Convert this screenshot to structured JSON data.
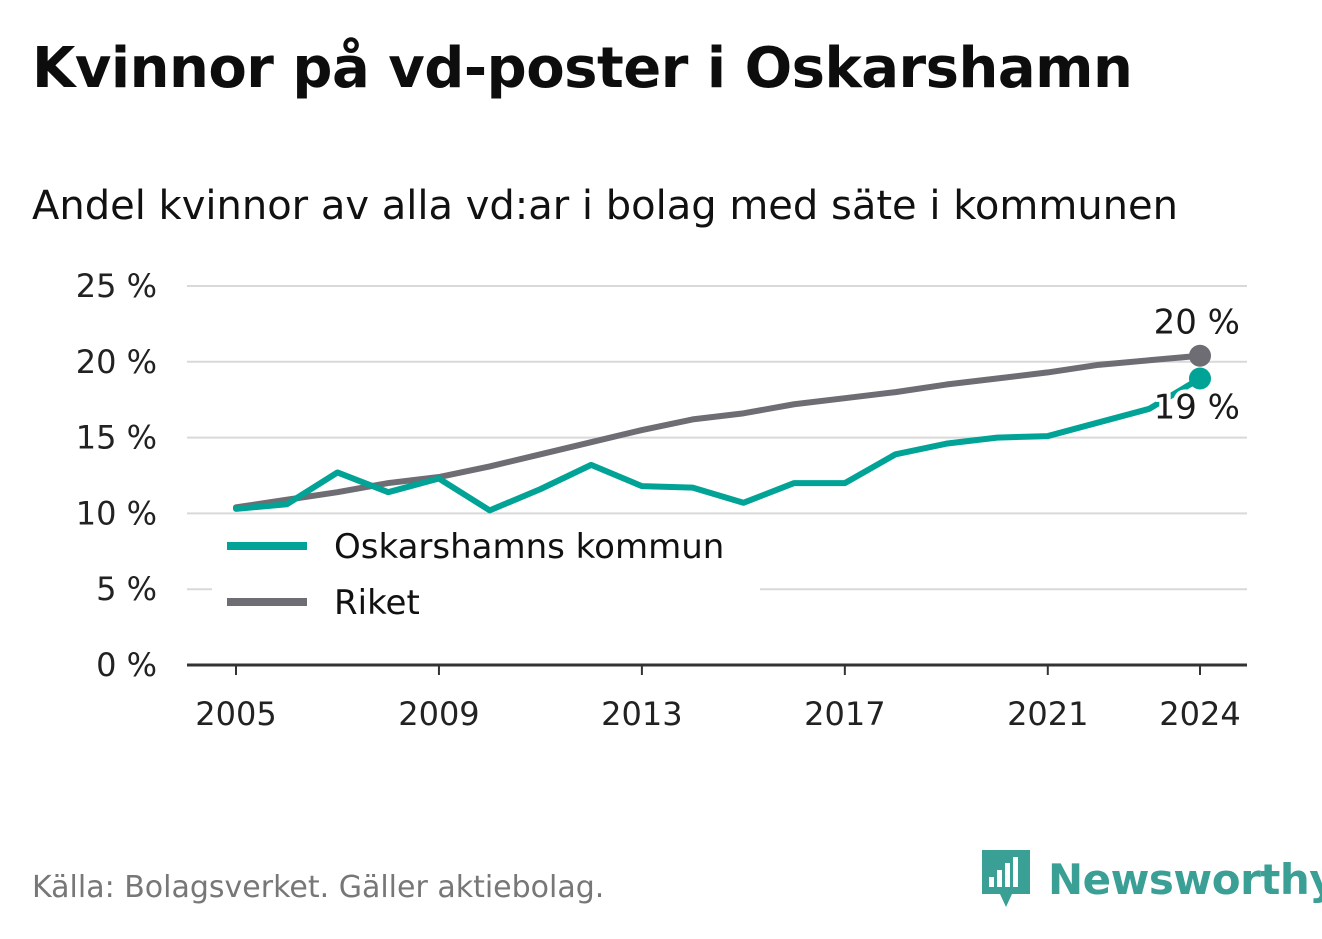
{
  "title": "Kvinnor på vd-poster i Oskarshamn",
  "subtitle": "Andel kvinnor av alla vd:ar i bolag med säte i kommunen",
  "source": "Källa: Bolagsverket. Gäller aktiebolag.",
  "brand": {
    "name": "Newsworthy",
    "color": "#3a9f95"
  },
  "chart_data": {
    "type": "line",
    "x": [
      2005,
      2006,
      2007,
      2008,
      2009,
      2010,
      2011,
      2012,
      2013,
      2014,
      2015,
      2016,
      2017,
      2018,
      2019,
      2020,
      2021,
      2022,
      2023,
      2024
    ],
    "series": [
      {
        "name": "Oskarshamns kommun",
        "color": "#00a396",
        "values": [
          10.3,
          10.6,
          12.7,
          11.4,
          12.3,
          10.2,
          11.6,
          13.2,
          11.8,
          11.7,
          10.7,
          12.0,
          12.0,
          13.9,
          14.6,
          15.0,
          15.1,
          16.0,
          16.9,
          18.9
        ],
        "end_label": "19 %"
      },
      {
        "name": "Riket",
        "color": "#6e6d74",
        "values": [
          10.4,
          10.9,
          11.4,
          12.0,
          12.4,
          13.1,
          13.9,
          14.7,
          15.5,
          16.2,
          16.6,
          17.2,
          17.6,
          18.0,
          18.5,
          18.9,
          19.3,
          19.8,
          20.1,
          20.4
        ],
        "end_label": "20 %"
      }
    ],
    "ylim": [
      0,
      25
    ],
    "yticks": [
      0,
      5,
      10,
      15,
      20,
      25
    ],
    "ytick_labels": [
      "0 %",
      "5 %",
      "10 %",
      "15 %",
      "20 %",
      "25 %"
    ],
    "xticks": [
      2005,
      2009,
      2013,
      2017,
      2021,
      2024
    ],
    "xtick_labels": [
      "2005",
      "2009",
      "2013",
      "2017",
      "2021",
      "2024"
    ],
    "xlim": [
      2005,
      2024
    ],
    "grid": true,
    "legend_position": "bottom-left",
    "xlabel": "",
    "ylabel": ""
  }
}
